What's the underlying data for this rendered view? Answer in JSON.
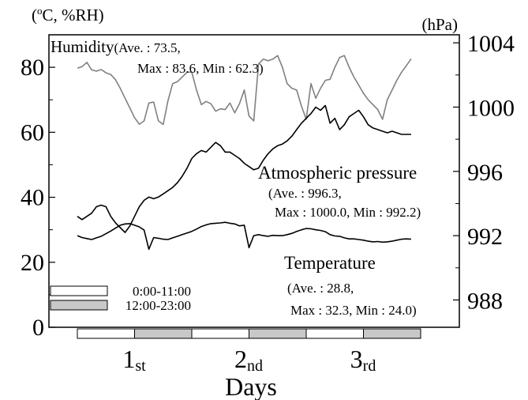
{
  "chart_data": {
    "type": "line",
    "left_axis_unit": "(°C, %RH)",
    "left_unit_degree": "o",
    "left_unit_rest": "C, %RH)",
    "right_axis_unit": "(hPa)",
    "xlabel": "Days",
    "left_ylim": [
      0,
      90
    ],
    "right_ylim": [
      986.3,
      1004.5
    ],
    "left_ticks": [
      "0",
      "20",
      "40",
      "60",
      "80"
    ],
    "right_ticks": [
      "988",
      "992",
      "996",
      "1000",
      "1004"
    ],
    "day_labels": [
      {
        "num": "1",
        "suffix": "st"
      },
      {
        "num": "2",
        "suffix": "nd"
      },
      {
        "num": "3",
        "suffix": "rd"
      }
    ],
    "legend": [
      {
        "label": "0:00-11:00",
        "color": "#ffffff"
      },
      {
        "label": "12:00-23:00",
        "color": "#c8c8c8"
      }
    ],
    "time_bar": [
      "#ffffff",
      "#c8c8c8",
      "#ffffff",
      "#c8c8c8",
      "#ffffff",
      "#c8c8c8"
    ],
    "x_range_hours": [
      0,
      72
    ],
    "series": [
      {
        "name": "Humidity",
        "color": "#808080",
        "axis": "left",
        "annotation": [
          "Humidity(Ave. : 73.5,",
          "Max : 83.6, Min : 62.3)"
        ],
        "x": [
          0,
          1,
          2,
          3,
          4,
          5,
          6,
          7,
          8,
          9,
          10,
          11,
          12,
          13,
          14,
          15,
          16,
          17,
          18,
          19,
          20,
          21,
          22,
          23,
          24,
          25,
          26,
          27,
          28,
          29,
          30,
          31,
          32,
          33,
          34,
          35,
          36,
          37,
          38,
          39,
          40,
          41,
          42,
          43,
          44,
          45,
          46,
          47,
          48,
          49,
          50,
          51,
          52,
          53,
          54,
          55,
          56,
          57,
          58,
          59,
          60,
          61,
          62,
          63,
          64,
          65,
          66,
          67,
          68,
          69,
          70
        ],
        "values": [
          79.7,
          80.2,
          81.5,
          79.2,
          78.8,
          79.3,
          78.3,
          77.8,
          76.2,
          73.5,
          70.5,
          67.5,
          64.5,
          62.5,
          63.5,
          69.0,
          69.3,
          63.5,
          62.4,
          69.7,
          75.0,
          75.6,
          77.0,
          78.5,
          78.5,
          73.0,
          68.5,
          69.5,
          68.8,
          66.5,
          67.2,
          67.0,
          69.0,
          66.0,
          68.8,
          73.0,
          65.0,
          63.5,
          81.0,
          82.5,
          82.0,
          82.5,
          83.6,
          80.0,
          75.0,
          73.5,
          73.0,
          68.0,
          64.0,
          75.0,
          70.5,
          73.5,
          76.0,
          76.3,
          80.0,
          83.0,
          83.6,
          80.0,
          77.0,
          74.5,
          72.0,
          70.0,
          68.5,
          67.0,
          64.0,
          70.0,
          73.0,
          76.0,
          78.5,
          80.5,
          82.6
        ]
      },
      {
        "name": "Atmospheric pressure",
        "color": "#000000",
        "axis": "right",
        "annotation": [
          "Atmospheric pressure",
          "(Ave. : 996.3,",
          "Max : 1000.0, Min : 992.2)"
        ],
        "x": [
          0,
          1,
          2,
          3,
          4,
          5,
          6,
          7,
          8,
          9,
          10,
          11,
          12,
          13,
          14,
          15,
          16,
          17,
          18,
          19,
          20,
          21,
          22,
          23,
          24,
          25,
          26,
          27,
          28,
          29,
          30,
          31,
          32,
          33,
          34,
          35,
          36,
          37,
          38,
          39,
          40,
          41,
          42,
          43,
          44,
          45,
          46,
          47,
          48,
          49,
          50,
          51,
          52,
          53,
          54,
          55,
          56,
          57,
          58,
          59,
          60,
          61,
          62,
          63,
          64,
          65,
          66,
          67,
          68,
          69,
          70
        ],
        "values": [
          993.2,
          993.0,
          993.2,
          993.4,
          993.8,
          993.9,
          993.8,
          993.2,
          992.8,
          992.5,
          992.2,
          992.6,
          993.2,
          993.8,
          994.2,
          994.4,
          994.3,
          994.4,
          994.6,
          994.8,
          995.0,
          995.3,
          995.7,
          996.2,
          996.8,
          997.1,
          997.3,
          997.2,
          997.5,
          997.8,
          997.6,
          997.2,
          997.2,
          997.0,
          996.8,
          996.5,
          996.3,
          996.1,
          996.2,
          996.7,
          997.1,
          997.4,
          997.6,
          997.7,
          997.9,
          998.2,
          998.6,
          999.0,
          999.3,
          999.6,
          1000.0,
          999.8,
          1000.1,
          999.0,
          999.3,
          998.6,
          998.9,
          999.4,
          999.6,
          999.8,
          999.4,
          998.9,
          998.7,
          998.6,
          998.5,
          998.4,
          998.5,
          998.4,
          998.3,
          998.3,
          998.3
        ]
      },
      {
        "name": "Temperature",
        "color": "#000000",
        "axis": "left",
        "annotation": [
          "Temperature",
          "(Ave. : 28.8,",
          "Max : 32.3, Min : 24.0)"
        ],
        "x": [
          0,
          1,
          2,
          3,
          4,
          5,
          6,
          7,
          8,
          9,
          10,
          11,
          12,
          13,
          14,
          15,
          16,
          17,
          18,
          19,
          20,
          21,
          22,
          23,
          24,
          25,
          26,
          27,
          28,
          29,
          30,
          31,
          32,
          33,
          34,
          35,
          36,
          37,
          38,
          39,
          40,
          41,
          42,
          43,
          44,
          45,
          46,
          47,
          48,
          49,
          50,
          51,
          52,
          53,
          54,
          55,
          56,
          57,
          58,
          59,
          60,
          61,
          62,
          63,
          64,
          65,
          66,
          67,
          68,
          69,
          70
        ],
        "values": [
          28.2,
          27.6,
          27.3,
          27.0,
          27.5,
          28.0,
          28.8,
          29.6,
          30.5,
          31.4,
          31.8,
          31.9,
          31.4,
          30.9,
          29.9,
          24.0,
          27.6,
          27.4,
          27.1,
          27.0,
          27.5,
          28.0,
          28.5,
          29.0,
          29.5,
          30.2,
          31.0,
          31.5,
          31.9,
          32.0,
          32.1,
          32.3,
          32.0,
          31.8,
          31.2,
          31.4,
          24.5,
          28.2,
          28.5,
          28.2,
          28.0,
          28.3,
          28.2,
          28.2,
          28.5,
          28.9,
          29.5,
          30.0,
          30.4,
          30.3,
          30.0,
          29.8,
          29.4,
          28.5,
          28.1,
          28.0,
          27.5,
          27.2,
          27.2,
          27.0,
          26.8,
          26.5,
          26.3,
          26.4,
          26.2,
          26.3,
          26.5,
          26.8,
          27.1,
          27.2,
          27.1
        ]
      }
    ]
  }
}
